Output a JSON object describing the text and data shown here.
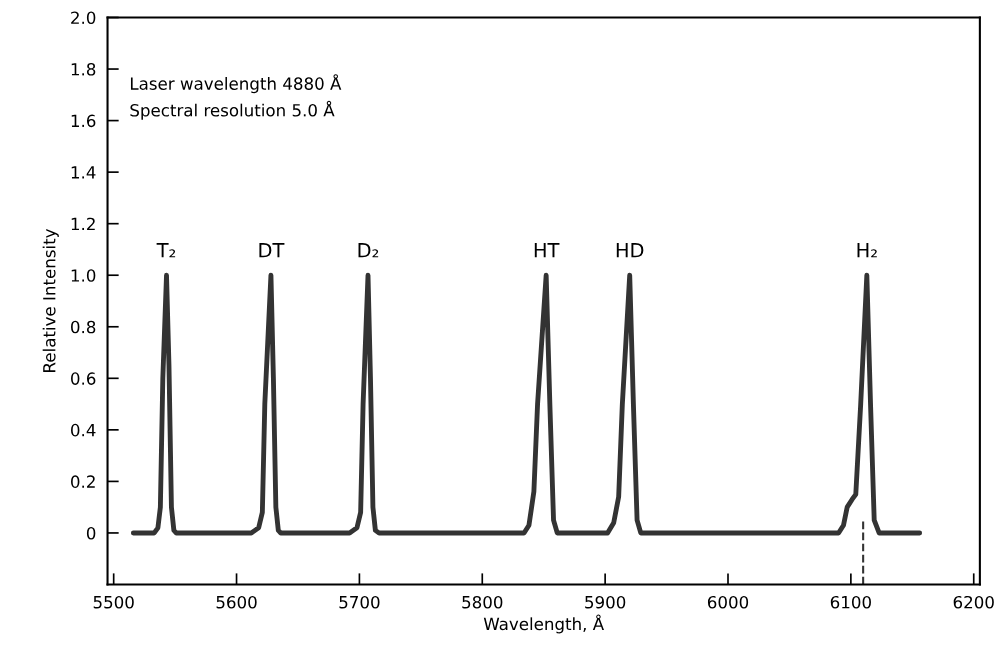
{
  "chart_data": {
    "type": "line",
    "xlabel": "Wavelength, Å",
    "ylabel": "Relative Intensity",
    "xlim": [
      5495,
      6205
    ],
    "xticks": [
      5500,
      5600,
      5700,
      5800,
      5900,
      6000,
      6100,
      6200
    ],
    "ylim": [
      -0.2,
      2.0
    ],
    "yticks": [
      {
        "value": 0,
        "label": "0"
      },
      0.2,
      0.4,
      0.6,
      0.8,
      {
        "value": 1.0,
        "label": "1.0"
      },
      1.2,
      1.4,
      1.6,
      1.8,
      {
        "value": 2.0,
        "label": "2.0"
      }
    ],
    "grid": false,
    "marker": "none",
    "line_style": "solid",
    "series": [
      {
        "color": "#333333",
        "x": [
          5516,
          5533,
          5536,
          5538,
          5540,
          5543,
          5545,
          5547,
          5549,
          5551,
          5612,
          5618,
          5621,
          5623,
          5628,
          5630,
          5632,
          5634,
          5636,
          5692,
          5698,
          5701,
          5703,
          5707,
          5709,
          5711,
          5713,
          5716,
          5834,
          5838,
          5842,
          5845,
          5852,
          5855,
          5858,
          5861,
          5902,
          5907,
          5911,
          5914,
          5920,
          5923,
          5926,
          5929,
          6090,
          6094,
          6097,
          6101,
          6104,
          6108,
          6113,
          6116,
          6119,
          6123,
          6156
        ],
        "values": [
          0,
          0,
          0.02,
          0.1,
          0.6,
          1.0,
          0.65,
          0.1,
          0.01,
          0,
          0,
          0.02,
          0.08,
          0.5,
          1.0,
          0.6,
          0.1,
          0.01,
          0,
          0,
          0.02,
          0.08,
          0.5,
          1.0,
          0.6,
          0.1,
          0.01,
          0,
          0,
          0.03,
          0.16,
          0.5,
          1.0,
          0.5,
          0.05,
          0,
          0,
          0.04,
          0.14,
          0.5,
          1.0,
          0.5,
          0.05,
          0,
          0,
          0.03,
          0.1,
          0.13,
          0.15,
          0.5,
          1.0,
          0.5,
          0.05,
          0,
          0
        ]
      }
    ],
    "ref_lines": [
      {
        "axis": "x",
        "value": 6110,
        "label": null,
        "line_style": "dashed",
        "color": "#333333"
      }
    ],
    "annotations": [
      "Laser wavelength 4880 Å\nSpectral resolution 5.0 Å",
      {
        "text": "T₂",
        "x": 5543,
        "y": 1.0
      },
      {
        "text": "DT",
        "x": 5628,
        "y": 1.0
      },
      {
        "text": "D₂",
        "x": 5707,
        "y": 1.0
      },
      {
        "text": "HT",
        "x": 5852,
        "y": 1.0
      },
      {
        "text": "HD",
        "x": 5920,
        "y": 1.0
      },
      {
        "text": "H₂",
        "x": 6113,
        "y": 1.0
      }
    ]
  }
}
